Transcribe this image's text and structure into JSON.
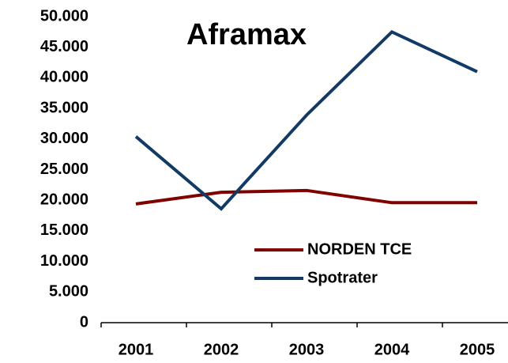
{
  "chart_data": {
    "type": "line",
    "title": "Aframax",
    "categories": [
      "2001",
      "2002",
      "2003",
      "2004",
      "2005"
    ],
    "series": [
      {
        "name": "NORDEN TCE",
        "color": "#800000",
        "values": [
          19400,
          21300,
          21600,
          19600,
          19600
        ]
      },
      {
        "name": "Spotrater",
        "color": "#113a64",
        "values": [
          30400,
          18600,
          33900,
          47500,
          41000
        ]
      }
    ],
    "ylim": [
      0,
      50000
    ],
    "yticks": [
      0,
      {
        "value": 5000,
        "label": "5.000"
      },
      {
        "value": 10000,
        "label": "10.000"
      },
      {
        "value": 15000,
        "label": "15.000"
      },
      {
        "value": 20000,
        "label": "20.000"
      },
      {
        "value": 25000,
        "label": "25.000"
      },
      {
        "value": 30000,
        "label": "30.000"
      },
      {
        "value": 35000,
        "label": "35.000"
      },
      {
        "value": 40000,
        "label": "40.000"
      },
      {
        "value": 45000,
        "label": "45.000"
      },
      {
        "value": 50000,
        "label": "50.000"
      }
    ],
    "grid": false
  }
}
